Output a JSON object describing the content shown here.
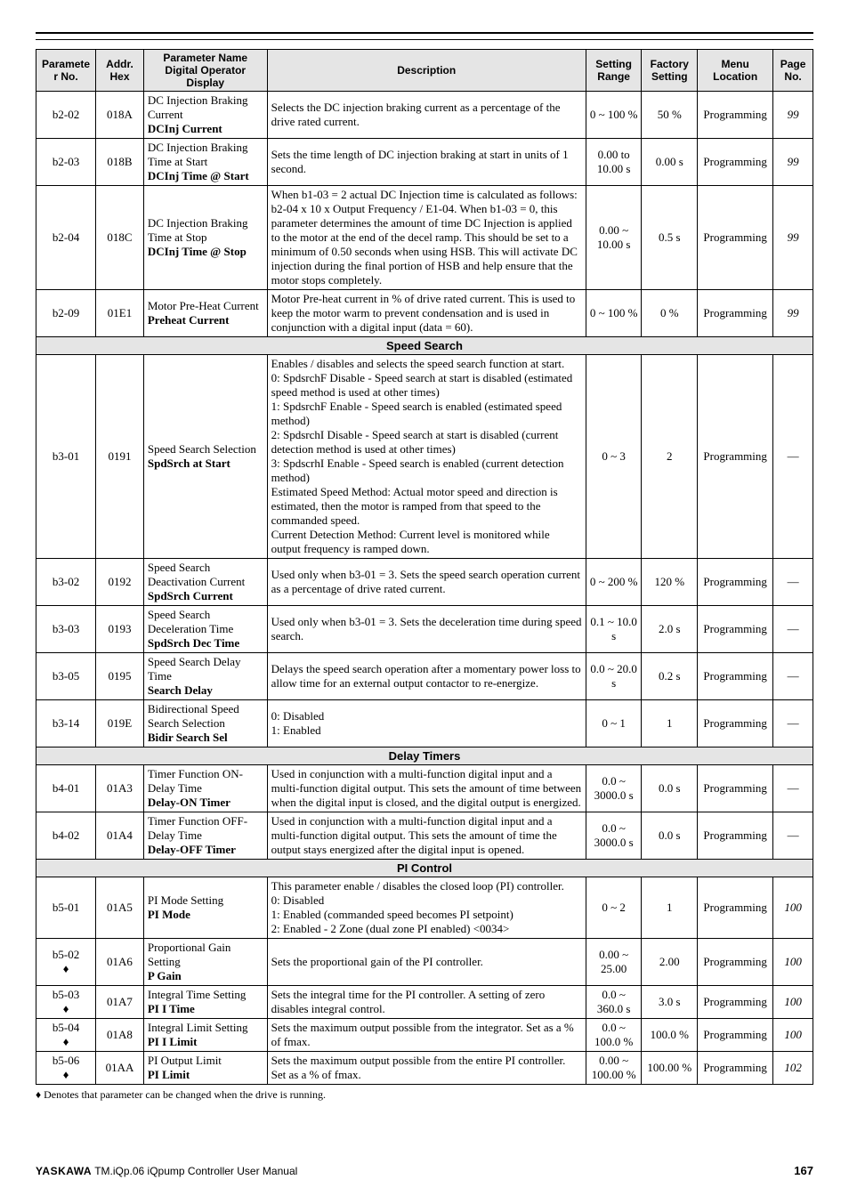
{
  "columns": {
    "paramNo": "Parameter No.",
    "addr": "Addr. Hex",
    "pnameTop": "Parameter Name",
    "pnameMid": "Digital Operator",
    "pnameBot": "Display",
    "desc": "Description",
    "range": "Setting Range",
    "factory": "Factory Setting",
    "menu": "Menu Location",
    "page": "Page No."
  },
  "sections": [
    {
      "rows": [
        {
          "paramNo": "b2-02",
          "addr": "018A",
          "pname": "DC Injection Braking Current",
          "display": "DCInj Current",
          "desc": "Selects the DC injection braking current as a percentage of the drive rated current.",
          "range": "0 ~ 100 %",
          "factory": "50 %",
          "menu": "Programming",
          "page": "99"
        },
        {
          "paramNo": "b2-03",
          "addr": "018B",
          "pname": "DC Injection Braking Time at Start",
          "display": "DCInj Time @ Start",
          "desc": "Sets the time length of DC injection braking at start in units of 1 second.",
          "range": "0.00 to 10.00 s",
          "factory": "0.00 s",
          "menu": "Programming",
          "page": "99"
        },
        {
          "paramNo": "b2-04",
          "addr": "018C",
          "pname": "DC Injection Braking Time at Stop",
          "display": "DCInj Time @ Stop",
          "desc": "When b1-03 = 2 actual DC Injection time is calculated as follows: b2-04 x 10 x Output Frequency / E1-04. When b1-03 = 0, this parameter determines the amount of time DC Injection is applied to the motor at the end of the decel ramp. This should be set to a minimum of 0.50 seconds when using HSB. This will activate DC injection during the final portion of HSB and help ensure that the motor stops completely.",
          "range": "0.00 ~ 10.00 s",
          "factory": "0.5 s",
          "menu": "Programming",
          "page": "99"
        },
        {
          "paramNo": "b2-09",
          "addr": "01E1",
          "pname": "Motor Pre-Heat Current",
          "display": "Preheat Current",
          "desc": "Motor Pre-heat current in % of drive rated current. This is used to keep the motor warm to prevent condensation and is used in conjunction with a digital input (data = 60).",
          "range": "0 ~ 100 %",
          "factory": "0 %",
          "menu": "Programming",
          "page": "99"
        }
      ]
    },
    {
      "title": "Speed Search",
      "rows": [
        {
          "paramNo": "b3-01",
          "addr": "0191",
          "pname": "Speed Search Selection",
          "display": "SpdSrch at Start",
          "desc": "Enables / disables and selects the speed search function at start.\n0: SpdsrchF Disable - Speed search at start is disabled (estimated speed method is used at other times)\n1: SpdsrchF Enable - Speed search is enabled (estimated speed method)\n2: SpdsrchI Disable - Speed search at start is disabled (current detection method is used at other times)\n3: SpdscrhI Enable - Speed search is enabled (current detection method)\nEstimated Speed Method: Actual motor speed and direction is estimated, then the motor is ramped from that speed to the commanded speed.\nCurrent Detection Method: Current level is monitored while output frequency is ramped down.",
          "range": "0 ~ 3",
          "factory": "2",
          "menu": "Programming",
          "page": "—"
        },
        {
          "paramNo": "b3-02",
          "addr": "0192",
          "pname": "Speed Search Deactivation Current",
          "display": "SpdSrch Current",
          "desc": "Used only when b3-01 = 3. Sets the speed search operation current as a percentage of drive rated current.",
          "range": "0 ~ 200 %",
          "factory": "120 %",
          "menu": "Programming",
          "page": "—"
        },
        {
          "paramNo": "b3-03",
          "addr": "0193",
          "pname": "Speed Search Deceleration Time",
          "display": "SpdSrch Dec Time",
          "desc": "Used only when b3-01 = 3. Sets the deceleration time during speed search.",
          "range": "0.1 ~ 10.0 s",
          "factory": "2.0 s",
          "menu": "Programming",
          "page": "—"
        },
        {
          "paramNo": "b3-05",
          "addr": "0195",
          "pname": "Speed Search Delay Time",
          "display": "Search Delay",
          "desc": "Delays the speed search operation after a momentary power loss to allow time for an external output contactor to re-energize.",
          "range": "0.0 ~ 20.0 s",
          "factory": "0.2 s",
          "menu": "Programming",
          "page": "—"
        },
        {
          "paramNo": "b3-14",
          "addr": "019E",
          "pname": "Bidirectional Speed Search Selection",
          "display": "Bidir Search Sel",
          "desc": "0: Disabled\n1: Enabled",
          "range": "0 ~ 1",
          "factory": "1",
          "menu": "Programming",
          "page": "—"
        }
      ]
    },
    {
      "title": "Delay Timers",
      "rows": [
        {
          "paramNo": "b4-01",
          "addr": "01A3",
          "pname": "Timer Function ON-Delay Time",
          "display": "Delay-ON Timer",
          "desc": "Used in conjunction with a multi-function digital input and a multi-function digital output. This sets the amount of time between when the digital input is closed, and the digital output is energized.",
          "range": "0.0 ~ 3000.0 s",
          "factory": "0.0 s",
          "menu": "Programming",
          "page": "—"
        },
        {
          "paramNo": "b4-02",
          "addr": "01A4",
          "pname": "Timer Function OFF-Delay Time",
          "display": "Delay-OFF Timer",
          "desc": "Used in conjunction with a multi-function digital input and a multi-function digital output. This sets the amount of time the output stays energized after the digital input is opened.",
          "range": "0.0 ~ 3000.0 s",
          "factory": "0.0 s",
          "menu": "Programming",
          "page": "—"
        }
      ]
    },
    {
      "title": "PI Control",
      "rows": [
        {
          "paramNo": "b5-01",
          "addr": "01A5",
          "pname": "PI Mode Setting",
          "display": "PI Mode",
          "desc": "This parameter enable  / disables the closed loop (PI) controller.\n0: Disabled\n1: Enabled (commanded speed becomes PI setpoint)\n2: Enabled - 2 Zone (dual zone PI enabled) <0034>",
          "range": "0 ~ 2",
          "factory": "1",
          "menu": "Programming",
          "page": "100"
        },
        {
          "paramNo": "b5-02",
          "diamond": true,
          "addr": "01A6",
          "pname": "Proportional Gain Setting",
          "display": "P Gain",
          "desc": "Sets the proportional gain of the PI controller.",
          "range": "0.00 ~ 25.00",
          "factory": "2.00",
          "menu": "Programming",
          "page": "100"
        },
        {
          "paramNo": "b5-03",
          "diamond": true,
          "addr": "01A7",
          "pname": "Integral Time Setting",
          "display": "PI I Time",
          "desc": "Sets the integral time for the PI controller. A setting of zero disables integral control.",
          "range": "0.0 ~ 360.0 s",
          "factory": "3.0 s",
          "menu": "Programming",
          "page": "100"
        },
        {
          "paramNo": "b5-04",
          "diamond": true,
          "addr": "01A8",
          "pname": "Integral Limit Setting",
          "display": "PI I Limit",
          "desc": "Sets the maximum output possible from the integrator. Set as a % of fmax.",
          "range": "0.0 ~ 100.0 %",
          "factory": "100.0 %",
          "menu": "Programming",
          "page": "100"
        },
        {
          "paramNo": "b5-06",
          "diamond": true,
          "addr": "01AA",
          "pname": "PI Output Limit",
          "display": "PI Limit",
          "desc": "Sets the maximum output possible from the entire PI controller. Set as a % of fmax.",
          "range": "0.00 ~ 100.00 %",
          "factory": "100.00 %",
          "menu": "Programming",
          "page": "102"
        }
      ]
    }
  ],
  "footnote": "♦ Denotes that parameter can be changed when the drive is running.",
  "footer": {
    "brand": "YASKAWA",
    "title": "TM.iQp.06 iQpump Controller User Manual",
    "page": "167"
  },
  "colWidths": [
    "7.5%",
    "6%",
    "15.5%",
    "40%",
    "7%",
    "7%",
    "9.5%",
    "5%"
  ]
}
